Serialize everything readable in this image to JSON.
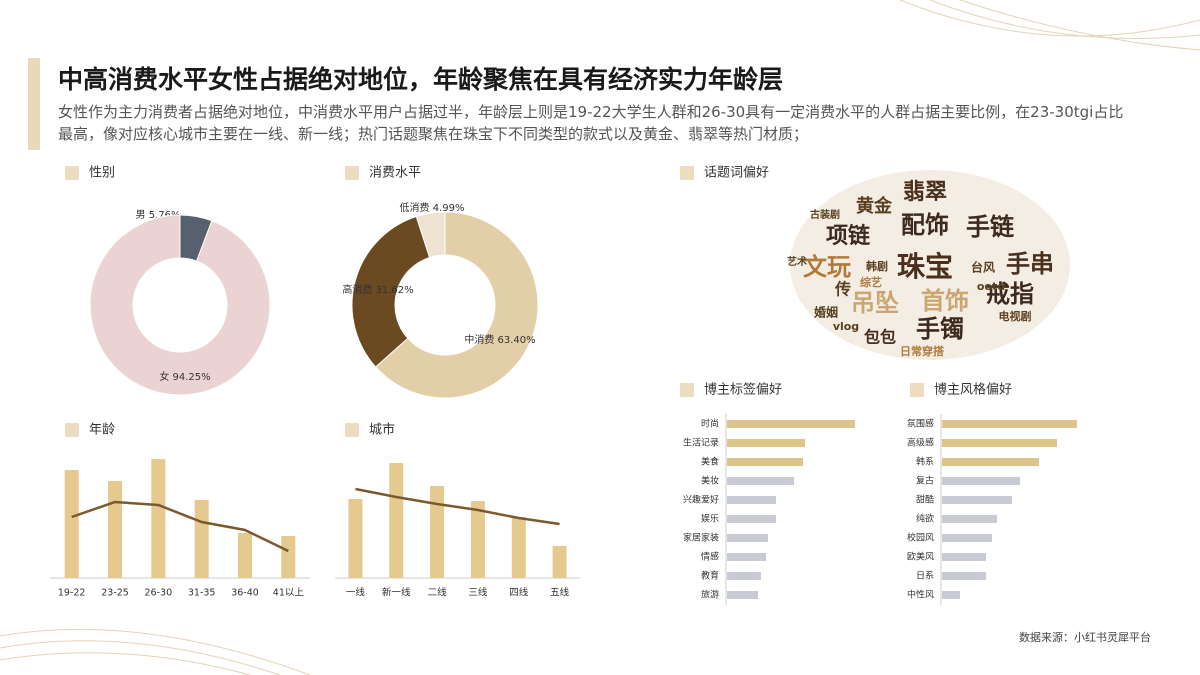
{
  "header": {
    "title": "中高消费水平女性占据绝对地位，年龄聚焦在具有经济实力年龄层",
    "subtitle": "女性作为主力消费者占据绝对地位，中消费水平用户占据过半，年龄层上则是19-22大学生人群和26-30具有一定消费水平的人群占据主要比例，在23-30tgi占比最高，像对应核心城市主要在一线、新一线；热门话题聚焦在珠宝下不同类型的款式以及黄金、翡翠等热门材质；"
  },
  "footer": "数据来源：小红书灵犀平台",
  "chart_data": [
    {
      "type": "pie",
      "title": "性别",
      "categories": [
        "男",
        "女"
      ],
      "values": [
        5.76,
        94.25
      ],
      "value_labels": [
        "5.76%",
        "94.25%"
      ],
      "colors": [
        "#56606e",
        "#ecd3d3"
      ]
    },
    {
      "type": "pie",
      "title": "消费水平",
      "categories": [
        "中消费",
        "高消费",
        "低消费"
      ],
      "values": [
        63.4,
        31.62,
        4.99
      ],
      "value_labels": [
        "63.40%",
        "31.62%",
        "4.99%"
      ],
      "colors": [
        "#e2cfa8",
        "#6b4a22",
        "#eee3d3"
      ]
    },
    {
      "type": "wordcloud",
      "title": "话题词偏好",
      "words": [
        {
          "text": "翡翠",
          "weight": 22,
          "color": "#4a2f1c"
        },
        {
          "text": "黄金",
          "weight": 18,
          "color": "#5a4020"
        },
        {
          "text": "配饰",
          "weight": 24,
          "color": "#3d2a1e"
        },
        {
          "text": "手链",
          "weight": 24,
          "color": "#3d2a1e"
        },
        {
          "text": "项链",
          "weight": 22,
          "color": "#3d2a1e"
        },
        {
          "text": "文玩",
          "weight": 24,
          "color": "#b07a3a"
        },
        {
          "text": "珠宝",
          "weight": 28,
          "color": "#4a2f1c"
        },
        {
          "text": "手串",
          "weight": 24,
          "color": "#4a2f1c"
        },
        {
          "text": "吊坠",
          "weight": 24,
          "color": "#c9a672"
        },
        {
          "text": "首饰",
          "weight": 24,
          "color": "#c9a672"
        },
        {
          "text": "戒指",
          "weight": 24,
          "color": "#3d2a1e"
        },
        {
          "text": "手镯",
          "weight": 24,
          "color": "#3d2a1e"
        },
        {
          "text": "包包",
          "weight": 16,
          "color": "#4a2f1c"
        },
        {
          "text": "婚姻",
          "weight": 12,
          "color": "#5a4020"
        },
        {
          "text": "vlog",
          "weight": 11,
          "color": "#5a4020"
        },
        {
          "text": "电视剧",
          "weight": 11,
          "color": "#5a4020"
        },
        {
          "text": "日常穿搭",
          "weight": 11,
          "color": "#b07a3a"
        },
        {
          "text": "韩剧",
          "weight": 11,
          "color": "#5a4020"
        },
        {
          "text": "台风",
          "weight": 12,
          "color": "#5a4020"
        },
        {
          "text": "ootd",
          "weight": 11,
          "color": "#5a4020"
        },
        {
          "text": "综艺",
          "weight": 11,
          "color": "#b07a3a"
        },
        {
          "text": "传",
          "weight": 16,
          "color": "#5a4020"
        },
        {
          "text": "古装剧",
          "weight": 10,
          "color": "#5a4020"
        },
        {
          "text": "艺术",
          "weight": 10,
          "color": "#5a4020"
        }
      ]
    },
    {
      "type": "barline",
      "title": "年龄",
      "categories": [
        "19-22",
        "23-25",
        "26-30",
        "31-35",
        "36-40",
        "41以上"
      ],
      "series": [
        {
          "values": [
            108,
            97,
            119,
            78,
            45,
            42
          ],
          "color": "#e5c98e"
        },
        {
          "values": [
            61,
            76,
            73,
            56,
            48,
            27
          ],
          "color": "#7a5a2c"
        }
      ],
      "ylim": [
        0,
        130
      ]
    },
    {
      "type": "barline",
      "title": "城市",
      "categories": [
        "一线",
        "新一线",
        "二线",
        "三线",
        "四线",
        "五线"
      ],
      "series": [
        {
          "values": [
            79,
            115,
            92,
            77,
            61,
            32
          ],
          "color": "#e5c98e"
        },
        {
          "values": [
            89,
            81,
            74,
            68,
            60,
            54
          ],
          "color": "#7a5a2c"
        }
      ],
      "ylim": [
        0,
        130
      ]
    },
    {
      "type": "hbar",
      "title": "博主标签偏好",
      "categories": [
        "时尚",
        "生活记录",
        "美食",
        "美妆",
        "兴趣爱好",
        "娱乐",
        "家居家装",
        "情感",
        "教育",
        "旅游"
      ],
      "values": [
        128,
        78,
        76,
        67,
        49,
        49,
        41,
        39,
        34,
        31
      ],
      "colors": [
        "#dcc48a",
        "#dcc48a",
        "#dcc48a",
        "#c9cbd4",
        "#c9cbd4",
        "#c9cbd4",
        "#c9cbd4",
        "#c9cbd4",
        "#c9cbd4",
        "#c9cbd4"
      ],
      "xlim": [
        0,
        150
      ]
    },
    {
      "type": "hbar",
      "title": "博主风格偏好",
      "categories": [
        "氛围感",
        "高级感",
        "韩系",
        "复古",
        "甜酷",
        "纯欲",
        "校园风",
        "欧美风",
        "日系",
        "中性风"
      ],
      "values": [
        135,
        115,
        97,
        78,
        70,
        55,
        50,
        44,
        44,
        18
      ],
      "colors": [
        "#dcc48a",
        "#dcc48a",
        "#dcc48a",
        "#c9cbd4",
        "#c9cbd4",
        "#c9cbd4",
        "#c9cbd4",
        "#c9cbd4",
        "#c9cbd4",
        "#c9cbd4"
      ],
      "xlim": [
        0,
        150
      ]
    }
  ]
}
